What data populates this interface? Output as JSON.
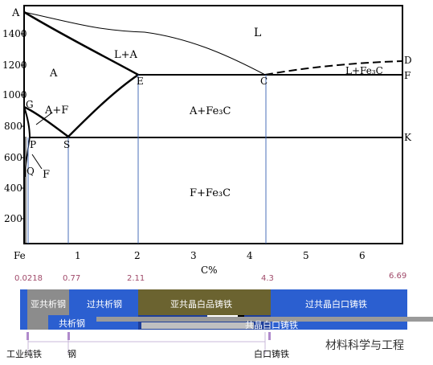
{
  "diagram": {
    "title_axis_x": "C%",
    "y_ticks": [
      "1400",
      "1200",
      "1000",
      "800",
      "600",
      "400",
      "200"
    ],
    "x_ticks": [
      "Fe",
      "1",
      "2",
      "3",
      "4",
      "5",
      "6"
    ],
    "points": {
      "A": "A",
      "D": "D",
      "E": "E",
      "C": "C",
      "F": "F",
      "G": "G",
      "P": "P",
      "S": "S",
      "K": "K",
      "Q": "Q"
    },
    "phases": {
      "liquid": "L",
      "l_plus_a": "L+A",
      "austenite": "A",
      "l_plus_fe3c": "L+Fe₃C",
      "a_plus_f": "A+F",
      "a_plus_fe3c": "A+Fe₃C",
      "f_plus_fe3c": "F+Fe₃C",
      "ferrite": "F"
    },
    "composition_marks": [
      "0.0218",
      "0.77",
      "2.11",
      "4.3",
      "6.69"
    ],
    "bar_segments": {
      "hypoeutectoid": "亚共析钢",
      "hypereutectoid": "过共析钢",
      "hypoeutectic": "亚共晶白品铸铁",
      "hypereutectic": "过共晶白口铸铁",
      "eutectoid": "共析钢",
      "eutectic": "共晶白口铸铁"
    },
    "categories": {
      "pure_iron": "工业纯铁",
      "steel": "钢",
      "white_cast_iron": "白口铸铁"
    },
    "watermark": "材料科学与工程"
  }
}
